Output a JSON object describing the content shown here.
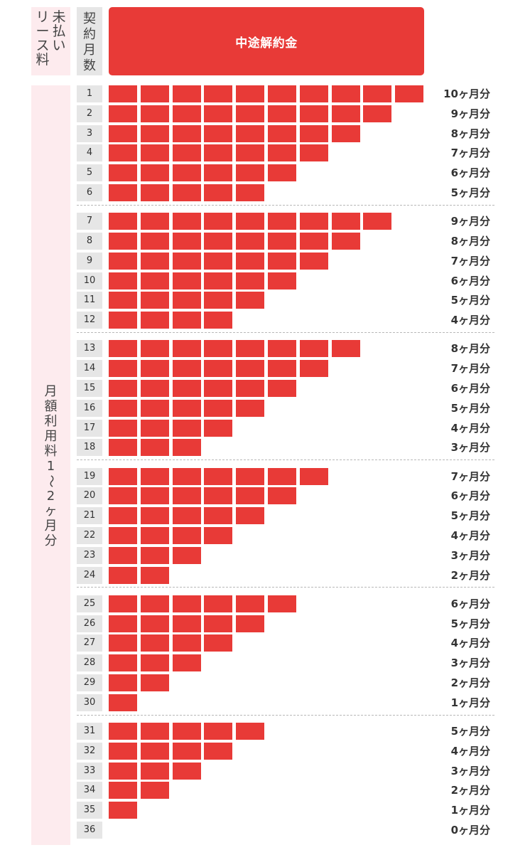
{
  "header": {
    "unpaid_lease_label": [
      "未払い",
      "リース料"
    ],
    "contract_months_label": "契約月数",
    "penalty_label": "中途解約金"
  },
  "side_label": "月額利用料1〜2ヶ月分",
  "colors": {
    "accent_red": "#e83a37",
    "pink_bg": "#fdebee",
    "gray_bg": "#e6e6e6"
  },
  "chart_data": {
    "type": "bar",
    "orientation": "horizontal",
    "title": "中途解約金",
    "categories": [
      "1",
      "2",
      "3",
      "4",
      "5",
      "6",
      "7",
      "8",
      "9",
      "10",
      "11",
      "12",
      "13",
      "14",
      "15",
      "16",
      "17",
      "18",
      "19",
      "20",
      "21",
      "22",
      "23",
      "24",
      "25",
      "26",
      "27",
      "28",
      "29",
      "30",
      "31",
      "32",
      "33",
      "34",
      "35",
      "36"
    ],
    "values": [
      10,
      9,
      8,
      7,
      6,
      5,
      9,
      8,
      7,
      6,
      5,
      4,
      8,
      7,
      6,
      5,
      4,
      3,
      7,
      6,
      5,
      4,
      3,
      2,
      6,
      5,
      4,
      3,
      2,
      1,
      5,
      4,
      3,
      2,
      1,
      0
    ],
    "value_labels": [
      "10ヶ月分",
      "9ヶ月分",
      "8ヶ月分",
      "7ヶ月分",
      "6ヶ月分",
      "5ヶ月分",
      "9ヶ月分",
      "8ヶ月分",
      "7ヶ月分",
      "6ヶ月分",
      "5ヶ月分",
      "4ヶ月分",
      "8ヶ月分",
      "7ヶ月分",
      "6ヶ月分",
      "5ヶ月分",
      "4ヶ月分",
      "3ヶ月分",
      "7ヶ月分",
      "6ヶ月分",
      "5ヶ月分",
      "4ヶ月分",
      "3ヶ月分",
      "2ヶ月分",
      "6ヶ月分",
      "5ヶ月分",
      "4ヶ月分",
      "3ヶ月分",
      "2ヶ月分",
      "1ヶ月分",
      "5ヶ月分",
      "4ヶ月分",
      "3ヶ月分",
      "2ヶ月分",
      "1ヶ月分",
      "0ヶ月分"
    ],
    "groups": [
      [
        1,
        6
      ],
      [
        7,
        12
      ],
      [
        13,
        18
      ],
      [
        19,
        24
      ],
      [
        25,
        30
      ],
      [
        31,
        36
      ]
    ],
    "xlim": [
      0,
      10
    ],
    "grid": false
  }
}
